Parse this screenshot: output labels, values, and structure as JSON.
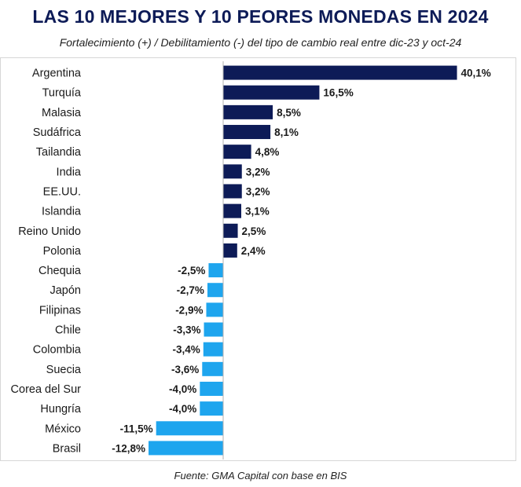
{
  "chart_data": {
    "type": "bar",
    "orientation": "horizontal",
    "title": "LAS 10 MEJORES Y 10 PEORES MONEDAS EN 2024",
    "subtitle": "Fortalecimiento (+) / Debilitamiento (-) del tipo de cambio real entre dic-23 y oct-24",
    "source": "Fuente: GMA Capital con base en BIS",
    "categories": [
      "Argentina",
      "Turquía",
      "Malasia",
      "Sudáfrica",
      "Tailandia",
      "India",
      "EE.UU.",
      "Islandia",
      "Reino Unido",
      "Polonia",
      "Chequia",
      "Japón",
      "Filipinas",
      "Chile",
      "Colombia",
      "Suecia",
      "Corea del Sur",
      "Hungría",
      "México",
      "Brasil"
    ],
    "values": [
      40.1,
      16.5,
      8.5,
      8.1,
      4.8,
      3.2,
      3.2,
      3.1,
      2.5,
      2.4,
      -2.5,
      -2.7,
      -2.9,
      -3.3,
      -3.4,
      -3.6,
      -4.0,
      -4.0,
      -11.5,
      -12.8
    ],
    "labels": [
      "40,1%",
      "16,5%",
      "8,5%",
      "8,1%",
      "4,8%",
      "3,2%",
      "3,2%",
      "3,1%",
      "2,5%",
      "2,4%",
      "-2,5%",
      "-2,7%",
      "-2,9%",
      "-3,3%",
      "-3,4%",
      "-3,6%",
      "-4,0%",
      "-4,0%",
      "-11,5%",
      "-12,8%"
    ],
    "colors": {
      "positive": "#0d1b57",
      "negative": "#1ea5ee",
      "axis": "#b0b0b0",
      "text": "#1a1a1a"
    },
    "grid": false,
    "legend": "none"
  }
}
